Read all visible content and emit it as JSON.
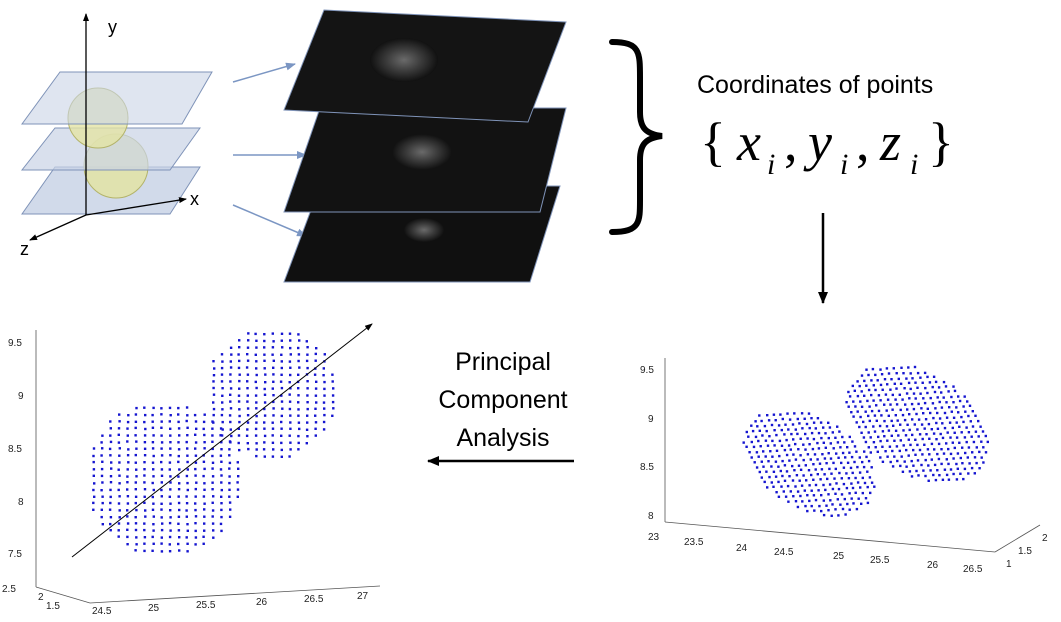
{
  "schematic": {
    "axis_y": "y",
    "axis_x": "x",
    "axis_z": "z"
  },
  "coordinates": {
    "heading": "Coordinates of points",
    "open_brace": "{",
    "close_brace": "}",
    "comma": ",",
    "x": "x",
    "y": "y",
    "z": "z",
    "sub": "i"
  },
  "pca": {
    "line1": "Principal",
    "line2": "Component",
    "line3": "Analysis"
  },
  "right_plot": {
    "z_ticks": [
      "9.5",
      "9",
      "8.5",
      "8"
    ],
    "x_ticks": [
      "23",
      "23.5",
      "24",
      "24.5",
      "25",
      "25.5",
      "26",
      "26.5"
    ],
    "y_ticks": [
      "1",
      "1.5",
      "2"
    ]
  },
  "left_plot": {
    "z_ticks": [
      "9.5",
      "9",
      "8.5",
      "8",
      "7.5"
    ],
    "x_ticks": [
      "24.5",
      "25",
      "25.5",
      "26",
      "26.5",
      "27"
    ],
    "y_ticks": [
      "2.5",
      "2",
      "1.5"
    ]
  },
  "colors": {
    "points": "#1515d0",
    "slab_fill": "#c9d3e6",
    "slab_stroke": "#7f93b8",
    "sphere_fill": "#e3e3a4",
    "sphere_stroke": "#b3b36a",
    "connector_arrow": "#7b96c3"
  }
}
